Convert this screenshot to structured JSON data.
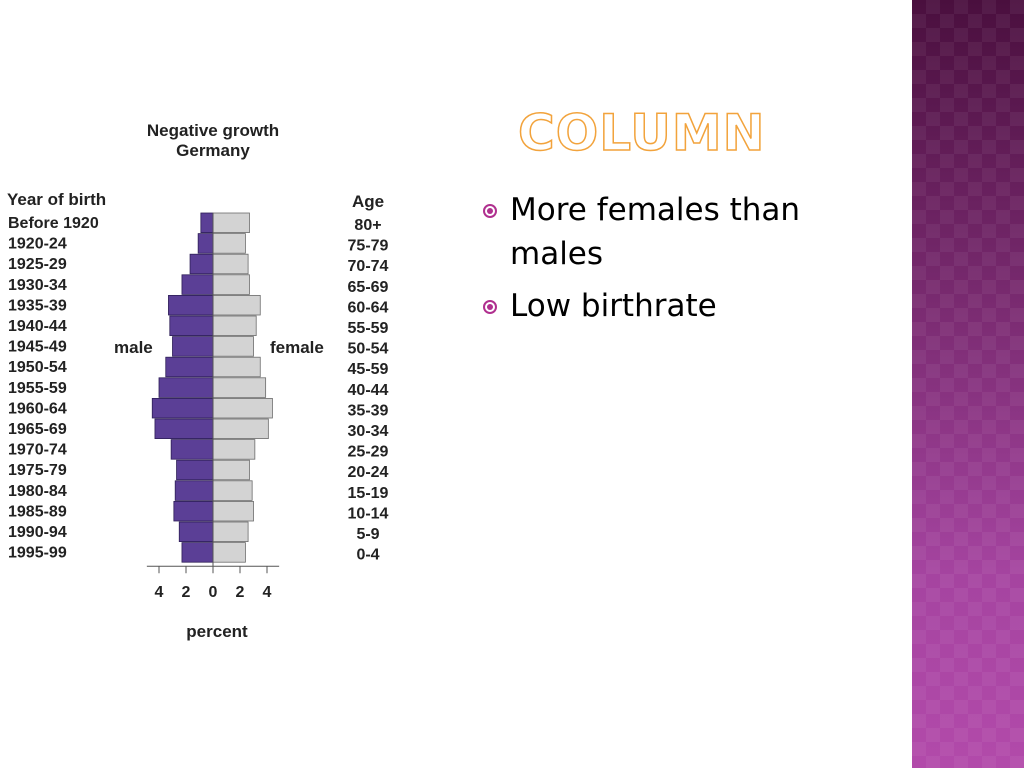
{
  "slide": {
    "title": "COLUMN",
    "bullets": [
      "More females than males",
      "Low birthrate"
    ],
    "colors": {
      "title_outline": "#f2a33c",
      "bullet_marker": "#b0308f",
      "side_panel": "#7a2b71"
    }
  },
  "chart_data": {
    "type": "bar",
    "subtype": "population-pyramid",
    "title": "Negative growth",
    "subtitle": "Germany",
    "xlabel": "percent",
    "left_header": "Year of birth",
    "right_header": "Age",
    "male_label": "male",
    "female_label": "female",
    "xticks": [
      "4",
      "2",
      "0",
      "2",
      "4"
    ],
    "xlim": [
      -4,
      4
    ],
    "colors": {
      "male": "#5b3f96",
      "female": "#d3d3d3"
    },
    "categories_birth": [
      "Before 1920",
      "1920-24",
      "1925-29",
      "1930-34",
      "1935-39",
      "1940-44",
      "1945-49",
      "1950-54",
      "1955-59",
      "1960-64",
      "1965-69",
      "1970-74",
      "1975-79",
      "1980-84",
      "1985-89",
      "1990-94",
      "1995-99"
    ],
    "categories_age": [
      "80+",
      "75-79",
      "70-74",
      "65-69",
      "60-64",
      "55-59",
      "50-54",
      "45-59",
      "40-44",
      "35-39",
      "30-34",
      "25-29",
      "20-24",
      "15-19",
      "10-14",
      "5-9",
      "0-4"
    ],
    "series": [
      {
        "name": "male",
        "values": [
          0.9,
          1.1,
          1.7,
          2.3,
          3.3,
          3.2,
          3.0,
          3.5,
          4.0,
          4.5,
          4.3,
          3.1,
          2.7,
          2.8,
          2.9,
          2.5,
          2.3
        ]
      },
      {
        "name": "female",
        "values": [
          2.7,
          2.4,
          2.6,
          2.7,
          3.5,
          3.2,
          3.0,
          3.5,
          3.9,
          4.4,
          4.1,
          3.1,
          2.7,
          2.9,
          3.0,
          2.6,
          2.4
        ]
      }
    ]
  }
}
